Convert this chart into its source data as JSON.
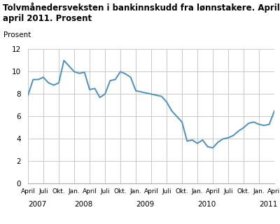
{
  "title": "Tolvmånedersveksten i bankinnskudd fra lønnstakere. April 2007-\napril 2011. Prosent",
  "ylabel": "Prosent",
  "line_color": "#4a90c4",
  "background_color": "#ffffff",
  "plot_bg_color": "#ffffff",
  "grid_color": "#c8c8c8",
  "ylim": [
    0,
    12
  ],
  "yticks": [
    0,
    2,
    4,
    6,
    8,
    10,
    12
  ],
  "values": [
    7.9,
    9.3,
    9.3,
    9.5,
    9.0,
    8.8,
    9.0,
    11.0,
    10.5,
    10.0,
    9.85,
    9.95,
    8.4,
    8.5,
    7.7,
    8.0,
    9.2,
    9.3,
    10.0,
    9.8,
    9.5,
    8.3,
    8.2,
    8.1,
    8.0,
    7.9,
    7.8,
    7.3,
    6.5,
    6.0,
    5.5,
    3.8,
    3.9,
    3.6,
    3.9,
    3.3,
    3.2,
    3.7,
    4.0,
    4.1,
    4.3,
    4.7,
    5.0,
    5.4,
    5.5,
    5.3,
    5.2,
    5.3,
    6.5
  ],
  "tick_labels": [
    "April",
    "Juli",
    "Okt.",
    "Jan.",
    "April",
    "Juli",
    "Okt.",
    "Jan.",
    "April",
    "Juli",
    "Okt.",
    "Jan.",
    "April",
    "Juli",
    "Okt.",
    "Jan.",
    "April"
  ],
  "tick_positions": [
    0,
    3,
    6,
    9,
    12,
    15,
    18,
    21,
    24,
    27,
    30,
    33,
    36,
    39,
    42,
    45,
    48
  ],
  "year_labels": [
    "2007",
    "2008",
    "2009",
    "2010",
    "2011"
  ],
  "year_x_positions": [
    0,
    9,
    21,
    33,
    45
  ]
}
